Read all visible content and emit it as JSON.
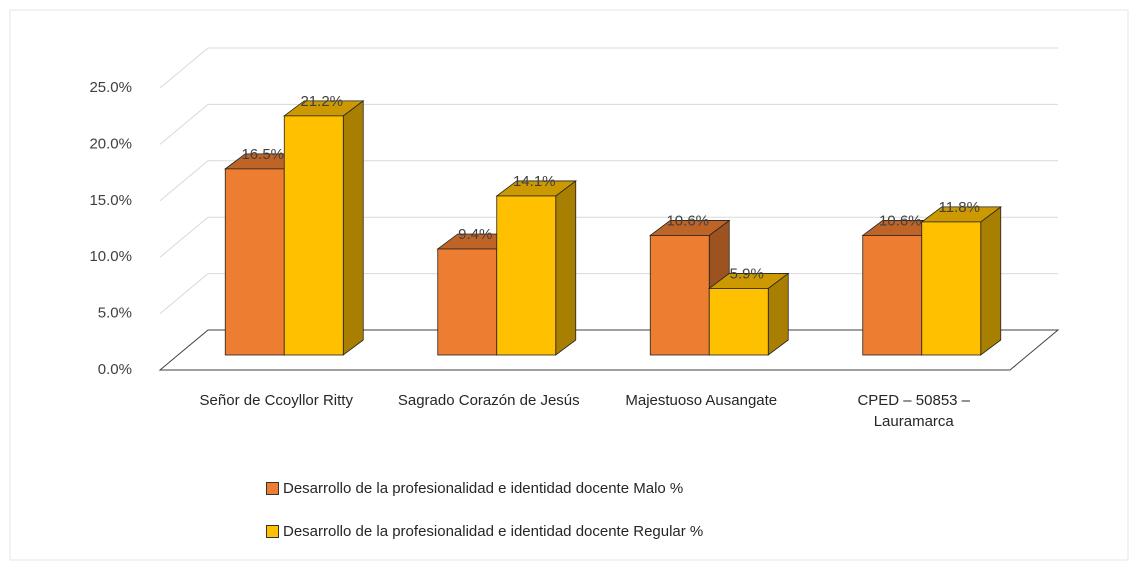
{
  "chart_data": {
    "type": "bar3d",
    "categories": [
      "Señor de Ccoyllor Ritty",
      "Sagrado Corazón de Jesús",
      "Majestuoso Ausangate",
      "CPED – 50853 – Lauramarca"
    ],
    "series": [
      {
        "name": "Desarrollo de la profesionalidad e identidad docente  Malo %",
        "color": "#ED7D31",
        "values": [
          16.5,
          9.4,
          10.6,
          10.6
        ],
        "value_labels": [
          "16.5%",
          "9.4%",
          "10.6%",
          "10.6%"
        ]
      },
      {
        "name": "Desarrollo de la profesionalidad e identidad docente  Regular %",
        "color": "#FFC000",
        "values": [
          21.2,
          14.1,
          5.9,
          11.8
        ],
        "value_labels": [
          "21.2%",
          "14.1%",
          "5.9%",
          "11.8%"
        ]
      }
    ],
    "ylim": [
      0,
      25
    ],
    "yticks": [
      {
        "value": 0,
        "label": "0.0%"
      },
      {
        "value": 5,
        "label": "5.0%"
      },
      {
        "value": 10,
        "label": "10.0%"
      },
      {
        "value": 15,
        "label": "15.0%"
      },
      {
        "value": 20,
        "label": "20.0%"
      },
      {
        "value": 25,
        "label": "25.0%"
      }
    ],
    "grid": true,
    "legend": "bottom"
  }
}
